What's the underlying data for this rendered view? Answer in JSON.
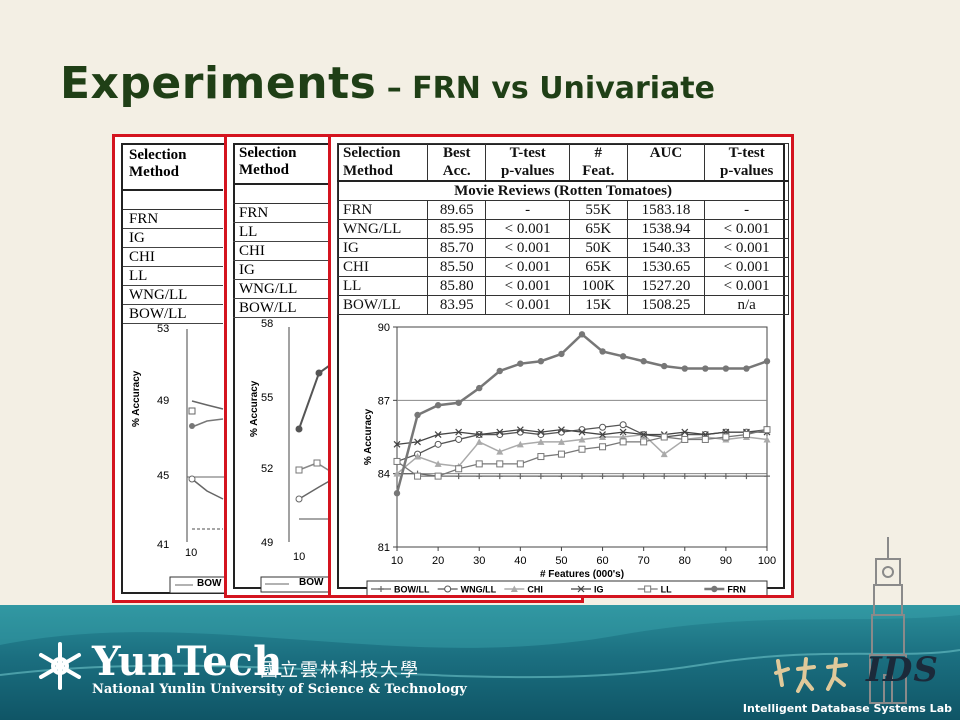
{
  "title": {
    "main": "Experiments",
    "sub": " – FRN vs Univariate"
  },
  "panel1": {
    "header": [
      "Selection",
      "Method"
    ],
    "methods": [
      "FRN",
      "IG",
      "CHI",
      "LL",
      "WNG/LL",
      "BOW/LL"
    ],
    "yticks": [
      "53",
      "49",
      "45",
      "41"
    ],
    "xticks": [
      "10"
    ],
    "ylabel": "% Accuracy",
    "legend": "BOW"
  },
  "panel2": {
    "header": [
      "Selection",
      "Method"
    ],
    "methods": [
      "FRN",
      "LL",
      "CHI",
      "IG",
      "WNG/LL",
      "BOW/LL"
    ],
    "yticks": [
      "58",
      "55",
      "52",
      "49"
    ],
    "xticks": [
      "10"
    ],
    "ylabel": "% Accuracy",
    "legend": "BOW"
  },
  "panel3": {
    "headers": [
      [
        "Selection",
        "Method"
      ],
      [
        "Best",
        "Acc."
      ],
      [
        "T-test",
        "p-values"
      ],
      [
        "#",
        "Feat."
      ],
      [
        "AUC",
        ""
      ],
      [
        "T-test",
        "p-values"
      ]
    ],
    "section": "Movie Reviews (Rotten Tomatoes)",
    "rows": [
      [
        "FRN",
        "89.65",
        "-",
        "55K",
        "1583.18",
        "-"
      ],
      [
        "WNG/LL",
        "85.95",
        "< 0.001",
        "65K",
        "1538.94",
        "< 0.001"
      ],
      [
        "IG",
        "85.70",
        "< 0.001",
        "50K",
        "1540.33",
        "< 0.001"
      ],
      [
        "CHI",
        "85.50",
        "< 0.001",
        "65K",
        "1530.65",
        "< 0.001"
      ],
      [
        "LL",
        "85.80",
        "< 0.001",
        "100K",
        "1527.20",
        "< 0.001"
      ],
      [
        "BOW/LL",
        "83.95",
        "< 0.001",
        "15K",
        "1508.25",
        "n/a"
      ]
    ]
  },
  "chart_data": {
    "type": "line",
    "xlabel": "# Features (000's)",
    "ylabel": "% Accuracy",
    "x": [
      10,
      15,
      20,
      25,
      30,
      35,
      40,
      45,
      50,
      55,
      60,
      65,
      70,
      75,
      80,
      85,
      90,
      95,
      100
    ],
    "xticks": [
      "10",
      "20",
      "30",
      "40",
      "50",
      "60",
      "70",
      "80",
      "90",
      "100"
    ],
    "yticks": [
      "81",
      "84",
      "87",
      "90"
    ],
    "ylim": [
      81,
      90
    ],
    "xlim": [
      10,
      100
    ],
    "hlines": [
      84,
      87
    ],
    "series": [
      {
        "name": "BOW/LL",
        "values": [
          84.0,
          84.0,
          83.9,
          83.9,
          83.9,
          83.9,
          83.9,
          83.9,
          83.9,
          83.9,
          83.9,
          83.9,
          83.9,
          83.9,
          83.9,
          83.9,
          83.9,
          83.9,
          83.9
        ]
      },
      {
        "name": "WNG/LL",
        "values": [
          84.5,
          84.8,
          85.2,
          85.4,
          85.6,
          85.6,
          85.7,
          85.6,
          85.7,
          85.8,
          85.9,
          86.0,
          85.6,
          85.5,
          85.6,
          85.6,
          85.7,
          85.7,
          85.8
        ]
      },
      {
        "name": "CHI",
        "values": [
          84.0,
          84.7,
          84.4,
          84.3,
          85.3,
          84.9,
          85.2,
          85.3,
          85.3,
          85.4,
          85.5,
          85.5,
          85.6,
          84.8,
          85.4,
          85.5,
          85.4,
          85.5,
          85.4
        ]
      },
      {
        "name": "IG",
        "values": [
          85.2,
          85.3,
          85.6,
          85.7,
          85.6,
          85.7,
          85.8,
          85.7,
          85.8,
          85.7,
          85.6,
          85.7,
          85.6,
          85.6,
          85.7,
          85.6,
          85.7,
          85.7,
          85.7
        ]
      },
      {
        "name": "LL",
        "values": [
          84.5,
          83.9,
          83.9,
          84.2,
          84.4,
          84.4,
          84.4,
          84.7,
          84.8,
          85.0,
          85.1,
          85.3,
          85.3,
          85.5,
          85.4,
          85.4,
          85.5,
          85.6,
          85.8
        ]
      },
      {
        "name": "FRN",
        "values": [
          83.2,
          86.4,
          86.8,
          86.9,
          87.5,
          88.2,
          88.5,
          88.6,
          88.9,
          89.7,
          89.0,
          88.8,
          88.6,
          88.4,
          88.3,
          88.3,
          88.3,
          88.3,
          88.6
        ]
      }
    ],
    "legend": [
      "BOW/LL",
      "WNG/LL",
      "CHI",
      "IG",
      "LL",
      "FRN"
    ]
  },
  "footer": {
    "logo_text": "YunTech",
    "logo_cjk": "國立雲林科技大學",
    "logo_en": "National Yunlin University of Science & Technology",
    "lab": "Intelligent Database Systems Lab",
    "ids_text": "IDS"
  }
}
